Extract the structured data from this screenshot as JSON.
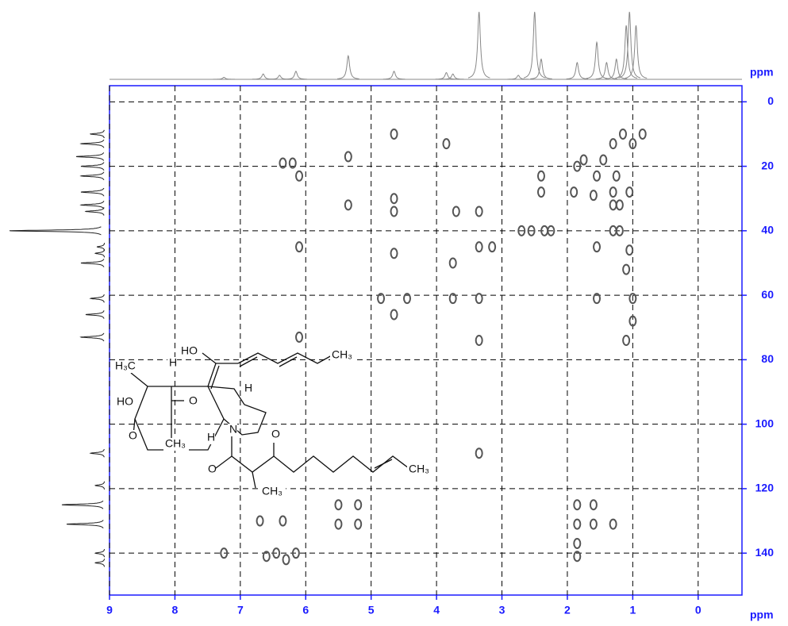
{
  "chart_data": {
    "type": "contour2d",
    "x_label": "ppm",
    "y_label": "ppm",
    "xlim": [
      9,
      -0.67
    ],
    "ylim": [
      -5,
      153
    ],
    "xticks": [
      9,
      8,
      7,
      6,
      5,
      4,
      3,
      2,
      1,
      0
    ],
    "yticks": [
      0,
      20,
      40,
      60,
      80,
      100,
      120,
      140
    ],
    "grid": true,
    "axis_color": "#1a1aff",
    "color": "#555555",
    "x": [
      4.65,
      3.85,
      1.3,
      1.0,
      1.15,
      0.85,
      6.2,
      6.35,
      5.35,
      1.45,
      1.75,
      1.55,
      1.25,
      1.85,
      6.1,
      2.4,
      2.4,
      4.65,
      1.9,
      1.6,
      1.3,
      1.3,
      1.2,
      1.05,
      5.35,
      4.65,
      3.7,
      3.35,
      2.7,
      2.55,
      2.35,
      2.25,
      1.3,
      1.2,
      6.1,
      4.65,
      3.15,
      3.35,
      1.55,
      1.05,
      1.1,
      3.75,
      4.85,
      4.45,
      3.35,
      3.75,
      1.55,
      1.0,
      1.0,
      1.1,
      4.65,
      3.35,
      6.1,
      3.35,
      5.5,
      5.2,
      1.85,
      1.6,
      1.85,
      1.6,
      1.3,
      5.5,
      5.2,
      6.7,
      6.35,
      1.85,
      1.85,
      7.25,
      6.6,
      6.3,
      6.45,
      6.15
    ],
    "values": [
      10,
      13,
      13,
      13,
      10,
      10,
      19,
      19,
      17,
      18,
      18,
      23,
      23,
      20,
      23,
      23,
      28,
      30,
      28,
      29,
      28,
      32,
      32,
      28,
      32,
      34,
      34,
      34,
      40,
      40,
      40,
      40,
      40,
      40,
      45,
      47,
      45,
      45,
      45,
      46,
      52,
      50,
      61,
      61,
      61,
      61,
      61,
      61,
      68,
      74,
      66,
      74,
      73,
      109,
      125,
      125,
      125,
      125,
      131,
      131,
      131,
      131,
      131,
      130,
      130,
      141,
      137,
      140,
      141,
      142,
      140,
      140
    ],
    "projection_1h": {
      "x": [
        7.25,
        6.65,
        6.4,
        6.15,
        5.35,
        4.65,
        3.85,
        3.75,
        3.35,
        2.75,
        2.5,
        2.4,
        1.85,
        1.55,
        1.4,
        1.25,
        1.1,
        1.05,
        0.95
      ],
      "values": [
        3,
        8,
        6,
        12,
        35,
        12,
        10,
        8,
        100,
        6,
        100,
        30,
        25,
        55,
        25,
        30,
        80,
        100,
        80
      ]
    },
    "projection_13c": {
      "y": [
        10,
        13,
        17,
        20,
        23,
        28,
        32,
        34,
        40,
        45,
        47,
        50,
        61,
        66,
        73,
        109,
        119,
        125,
        131,
        140,
        143
      ],
      "values": [
        15,
        25,
        30,
        25,
        25,
        25,
        25,
        20,
        100,
        8,
        10,
        25,
        15,
        20,
        25,
        15,
        10,
        45,
        40,
        10,
        10
      ]
    },
    "structure_labels": [
      "HO",
      "CH₃",
      "H₃C",
      "H",
      "H",
      "HO",
      "O",
      "O",
      "CH₃",
      "H",
      "N",
      "O",
      "O",
      "CH₃",
      "CH₃"
    ]
  }
}
